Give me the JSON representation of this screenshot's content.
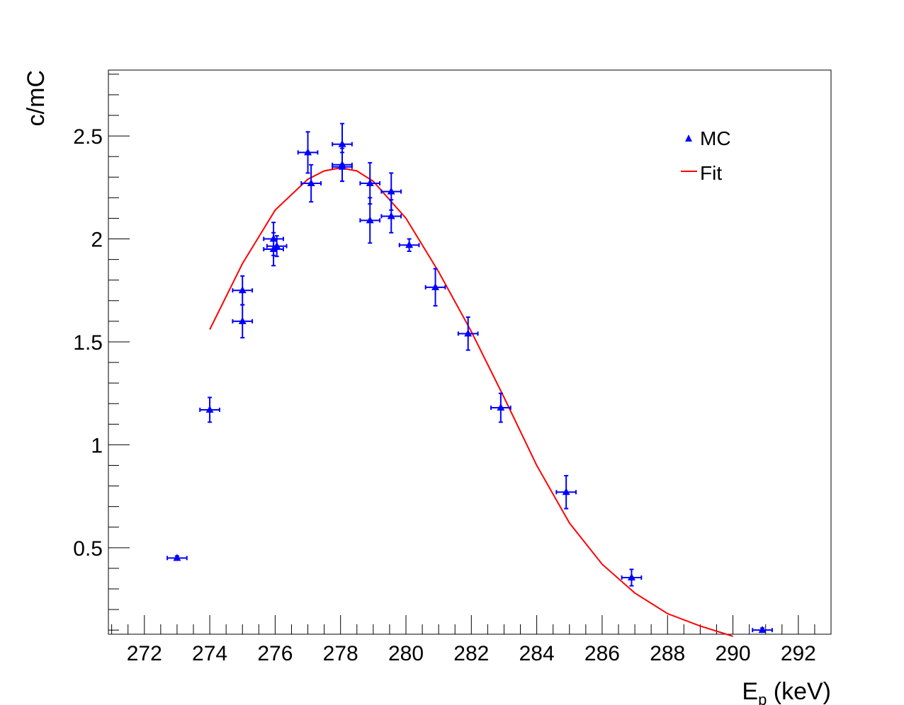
{
  "chart_data": {
    "type": "scatter",
    "title": "",
    "xlabel": {
      "main": "E",
      "sub": "p",
      "unit": " (keV)"
    },
    "ylabel": "c/mC",
    "xlim": [
      270.9,
      293.0
    ],
    "ylim": [
      0.08,
      2.82
    ],
    "x_ticks": [
      272,
      274,
      276,
      278,
      280,
      282,
      284,
      286,
      288,
      290,
      292
    ],
    "y_ticks": [
      0.5,
      1,
      1.5,
      2,
      2.5
    ],
    "y_tick_labels": [
      "0.5",
      "1",
      "1.5",
      "2",
      "2.5"
    ],
    "legend": {
      "position": "top-right",
      "entries": [
        {
          "label": "MC",
          "marker": "triangle",
          "color": "#0000ff"
        },
        {
          "label": "Fit",
          "marker": "line",
          "color": "#ff0000"
        }
      ]
    },
    "series": [
      {
        "name": "MC",
        "color": "#0000ff",
        "points": [
          {
            "x": 273.0,
            "y": 0.45,
            "xerr": 0.3,
            "yerr": 0.01
          },
          {
            "x": 274.0,
            "y": 1.17,
            "xerr": 0.3,
            "yerr": 0.06
          },
          {
            "x": 275.0,
            "y": 1.75,
            "xerr": 0.3,
            "yerr": 0.07
          },
          {
            "x": 275.0,
            "y": 1.6,
            "xerr": 0.3,
            "yerr": 0.08
          },
          {
            "x": 275.95,
            "y": 2.0,
            "xerr": 0.3,
            "yerr": 0.08
          },
          {
            "x": 275.95,
            "y": 1.95,
            "xerr": 0.3,
            "yerr": 0.08
          },
          {
            "x": 276.05,
            "y": 1.965,
            "xerr": 0.3,
            "yerr": 0.05
          },
          {
            "x": 277.0,
            "y": 2.42,
            "xerr": 0.3,
            "yerr": 0.1
          },
          {
            "x": 277.1,
            "y": 2.27,
            "xerr": 0.3,
            "yerr": 0.09
          },
          {
            "x": 278.05,
            "y": 2.46,
            "xerr": 0.3,
            "yerr": 0.1
          },
          {
            "x": 278.05,
            "y": 2.36,
            "xerr": 0.3,
            "yerr": 0.08
          },
          {
            "x": 278.05,
            "y": 2.35,
            "xerr": 0.3,
            "yerr": 0.07
          },
          {
            "x": 278.9,
            "y": 2.27,
            "xerr": 0.3,
            "yerr": 0.1
          },
          {
            "x": 278.9,
            "y": 2.09,
            "xerr": 0.3,
            "yerr": 0.11
          },
          {
            "x": 279.55,
            "y": 2.23,
            "xerr": 0.3,
            "yerr": 0.09
          },
          {
            "x": 279.55,
            "y": 2.11,
            "xerr": 0.3,
            "yerr": 0.08
          },
          {
            "x": 280.1,
            "y": 1.97,
            "xerr": 0.3,
            "yerr": 0.03
          },
          {
            "x": 280.9,
            "y": 1.765,
            "xerr": 0.3,
            "yerr": 0.09
          },
          {
            "x": 281.9,
            "y": 1.54,
            "xerr": 0.3,
            "yerr": 0.08
          },
          {
            "x": 282.9,
            "y": 1.18,
            "xerr": 0.3,
            "yerr": 0.07
          },
          {
            "x": 284.9,
            "y": 0.77,
            "xerr": 0.3,
            "yerr": 0.08
          },
          {
            "x": 286.9,
            "y": 0.355,
            "xerr": 0.3,
            "yerr": 0.04
          },
          {
            "x": 290.9,
            "y": 0.1,
            "xerr": 0.3,
            "yerr": 0.01
          }
        ]
      },
      {
        "name": "Fit",
        "color": "#ff0000",
        "type": "line",
        "x": [
          274.0,
          275.0,
          276.0,
          277.0,
          277.5,
          278.0,
          278.5,
          279.0,
          280.0,
          281.0,
          282.0,
          283.0,
          284.0,
          285.0,
          286.0,
          287.0,
          288.0,
          289.0,
          290.0
        ],
        "y": [
          1.56,
          1.88,
          2.14,
          2.29,
          2.33,
          2.345,
          2.33,
          2.28,
          2.1,
          1.84,
          1.55,
          1.23,
          0.9,
          0.62,
          0.42,
          0.28,
          0.18,
          0.12,
          0.07
        ]
      }
    ]
  }
}
